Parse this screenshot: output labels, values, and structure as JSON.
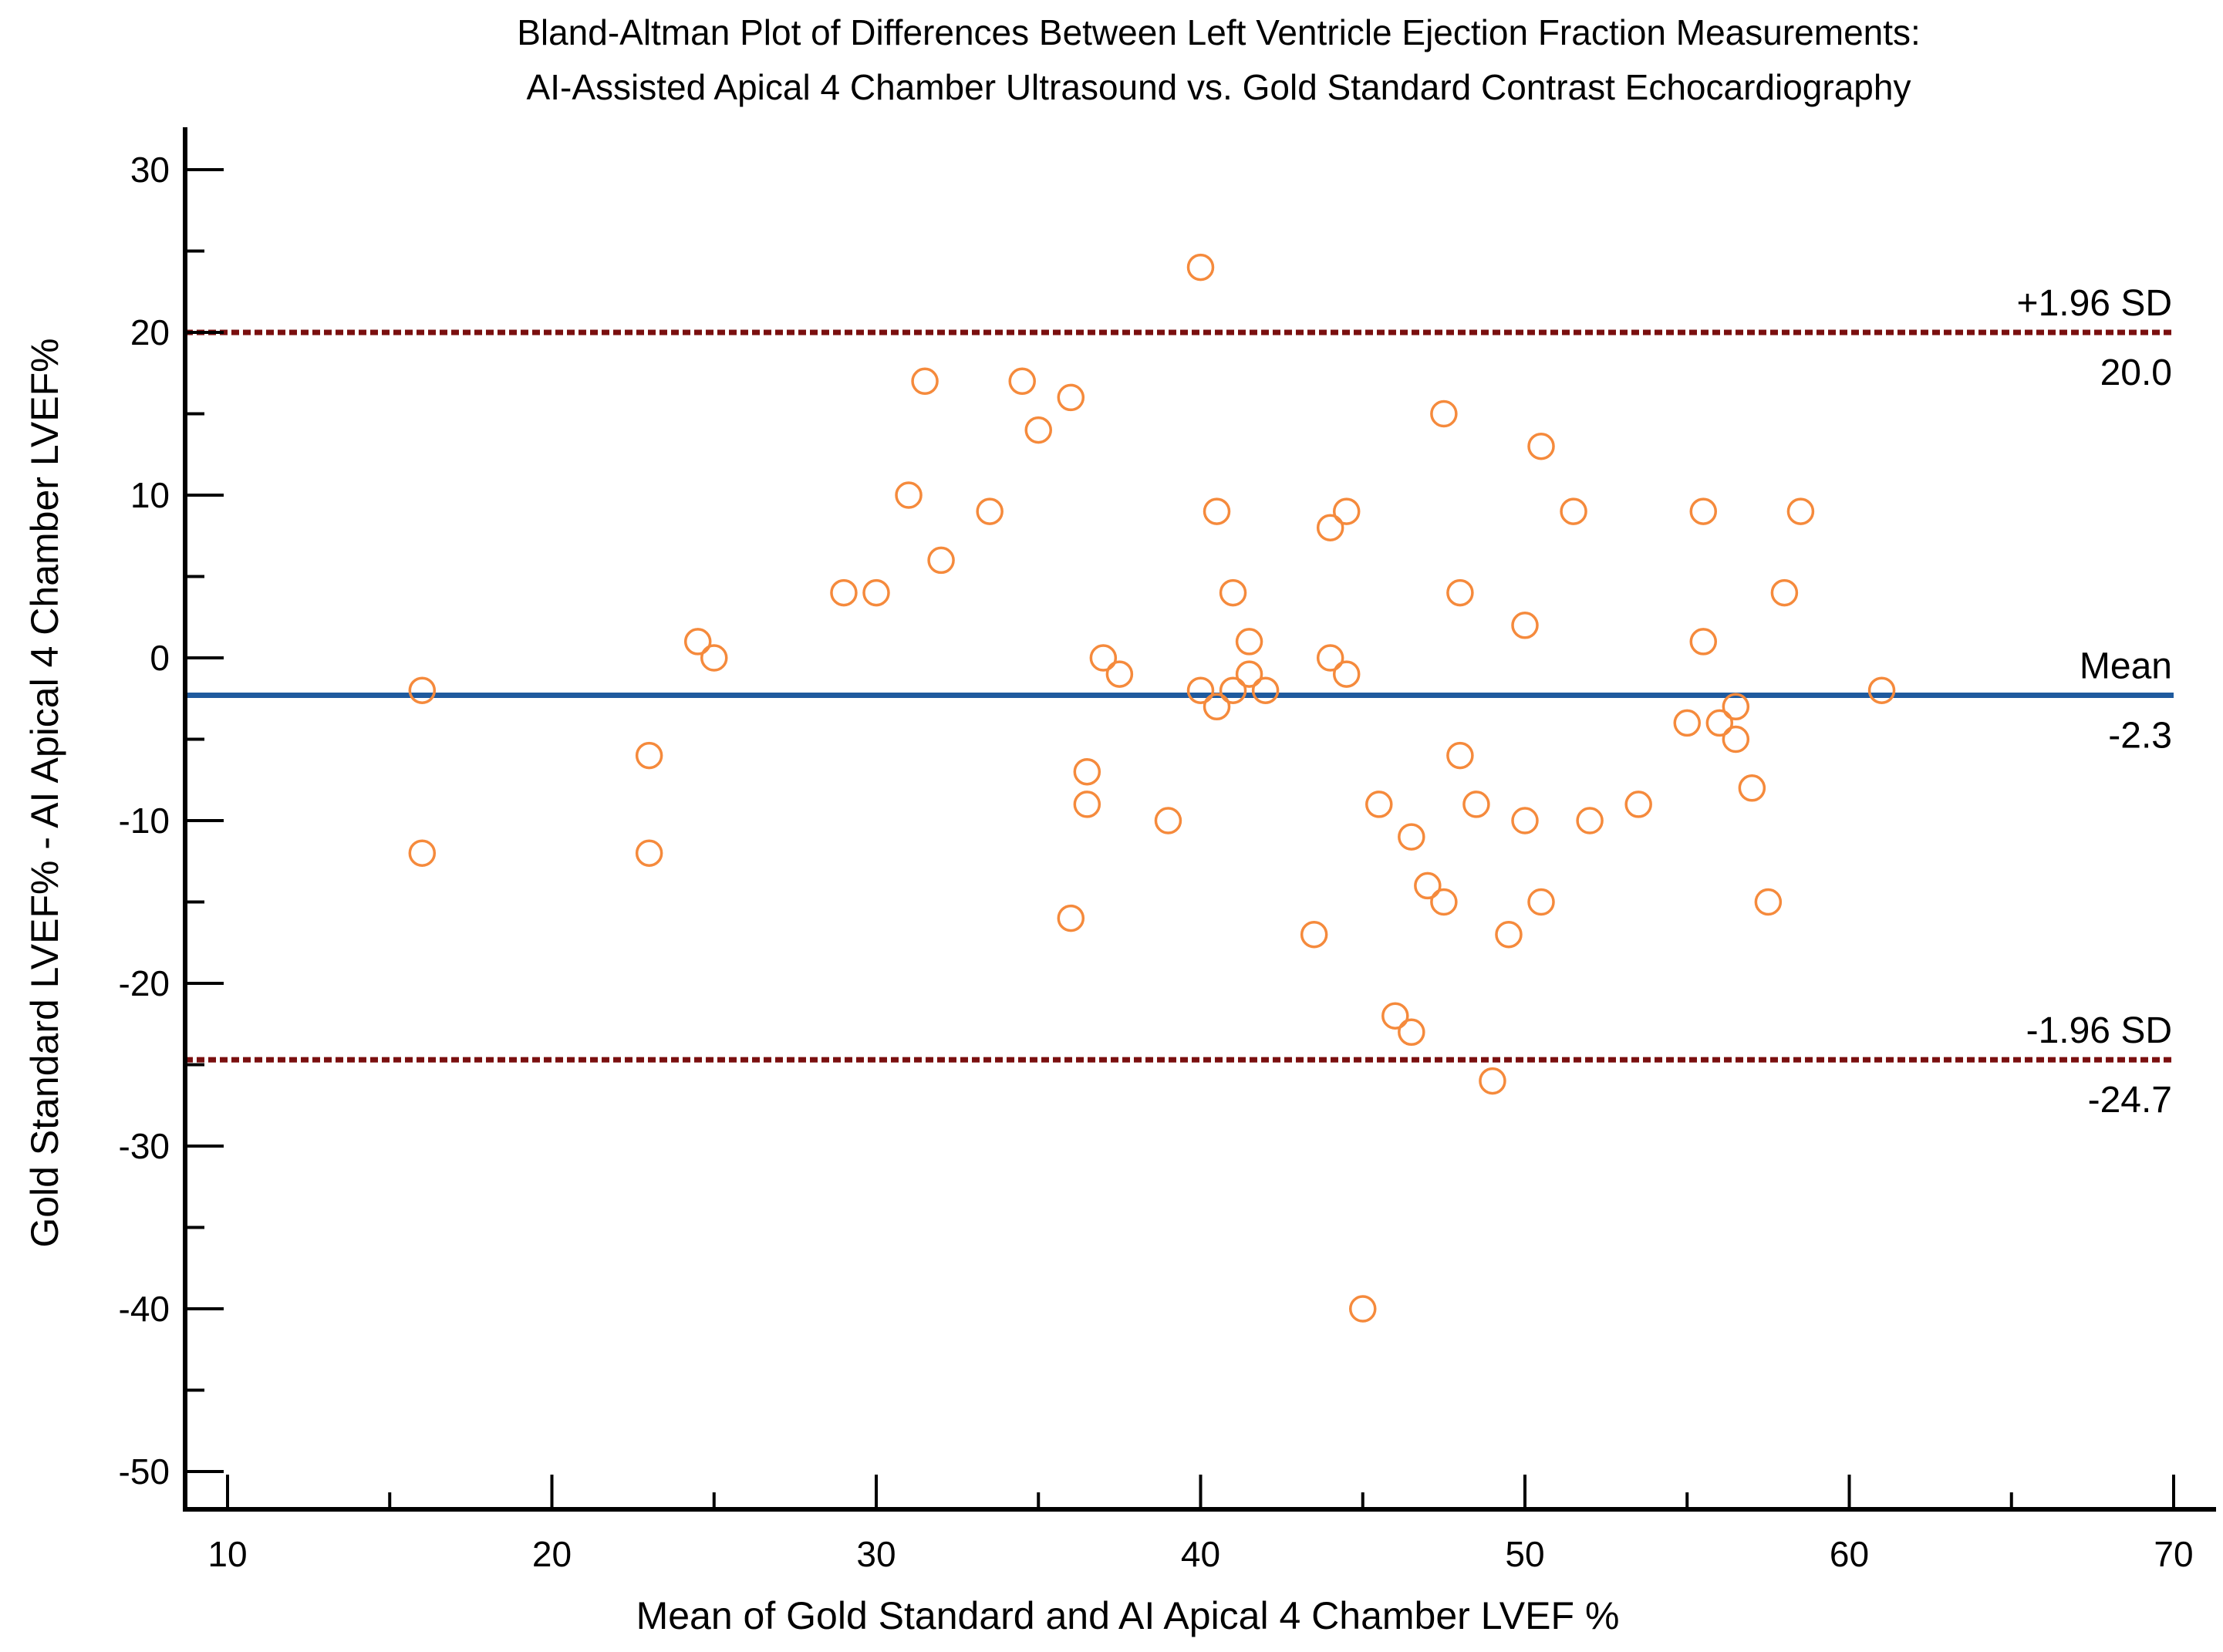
{
  "chart_data": {
    "type": "scatter",
    "title_lines": [
      "Bland-Altman Plot of Differences Between Left Ventricle Ejection Fraction Measurements:",
      "AI-Assisted Apical 4 Chamber Ultrasound vs. Gold Standard Contrast Echocardiography"
    ],
    "xlabel": "Mean of Gold Standard and AI Apical 4 Chamber LVEF %",
    "ylabel": "Gold Standard LVEF% - AI Apical 4 Chamber LVEF%",
    "xlim": [
      10,
      70
    ],
    "ylim": [
      -50,
      30
    ],
    "x_ticks": [
      10,
      20,
      30,
      40,
      50,
      60,
      70
    ],
    "x_tick_labels": [
      "10",
      "20",
      "30",
      "40",
      "50",
      "60",
      "70"
    ],
    "y_ticks": [
      30,
      20,
      10,
      0,
      -10,
      -20,
      -30,
      -40,
      -50
    ],
    "y_tick_labels": [
      "30",
      "20",
      "10",
      "0",
      "-10",
      "-20",
      "-30",
      "-40",
      "-50"
    ],
    "reference_lines": [
      {
        "name": "upper-loa",
        "label": "+1.96 SD",
        "value_label": "20.0",
        "y": 20.0,
        "color": "#7a0f0f",
        "style": "dashed"
      },
      {
        "name": "mean",
        "label": "Mean",
        "value_label": "-2.3",
        "y": -2.3,
        "color": "#1f5a9e",
        "style": "solid"
      },
      {
        "name": "lower-loa",
        "label": "-1.96 SD",
        "value_label": "-24.7",
        "y": -24.7,
        "color": "#7a0f0f",
        "style": "dashed"
      }
    ],
    "marker_color": "#f58a3c",
    "points": [
      {
        "x": 16,
        "y": -2
      },
      {
        "x": 16,
        "y": -12
      },
      {
        "x": 23,
        "y": -6
      },
      {
        "x": 23,
        "y": -12
      },
      {
        "x": 24.5,
        "y": 1
      },
      {
        "x": 25,
        "y": 0
      },
      {
        "x": 29,
        "y": 4
      },
      {
        "x": 30,
        "y": 4
      },
      {
        "x": 31,
        "y": 10
      },
      {
        "x": 31.5,
        "y": 17
      },
      {
        "x": 32,
        "y": 6
      },
      {
        "x": 33.5,
        "y": 9
      },
      {
        "x": 34.5,
        "y": 17
      },
      {
        "x": 35,
        "y": 14
      },
      {
        "x": 36,
        "y": 16
      },
      {
        "x": 36,
        "y": -16
      },
      {
        "x": 36.5,
        "y": -7
      },
      {
        "x": 36.5,
        "y": -9
      },
      {
        "x": 37,
        "y": 0
      },
      {
        "x": 37.5,
        "y": -1
      },
      {
        "x": 39,
        "y": -10
      },
      {
        "x": 40,
        "y": 24
      },
      {
        "x": 40,
        "y": -2
      },
      {
        "x": 40.5,
        "y": 9
      },
      {
        "x": 40.5,
        "y": -3
      },
      {
        "x": 41,
        "y": 4
      },
      {
        "x": 41,
        "y": -2
      },
      {
        "x": 41.5,
        "y": 1
      },
      {
        "x": 41.5,
        "y": -1
      },
      {
        "x": 42,
        "y": -2
      },
      {
        "x": 43.5,
        "y": -17
      },
      {
        "x": 44,
        "y": 8
      },
      {
        "x": 44,
        "y": 0
      },
      {
        "x": 44.5,
        "y": 9
      },
      {
        "x": 44.5,
        "y": -1
      },
      {
        "x": 45,
        "y": -40
      },
      {
        "x": 45.5,
        "y": -9
      },
      {
        "x": 46,
        "y": -22
      },
      {
        "x": 46.5,
        "y": -23
      },
      {
        "x": 46.5,
        "y": -11
      },
      {
        "x": 47,
        "y": -14
      },
      {
        "x": 47.5,
        "y": 15
      },
      {
        "x": 47.5,
        "y": -15
      },
      {
        "x": 48,
        "y": 4
      },
      {
        "x": 48,
        "y": -6
      },
      {
        "x": 48.5,
        "y": -9
      },
      {
        "x": 49,
        "y": -26
      },
      {
        "x": 49.5,
        "y": -17
      },
      {
        "x": 50,
        "y": 2
      },
      {
        "x": 50,
        "y": -10
      },
      {
        "x": 50.5,
        "y": 13
      },
      {
        "x": 50.5,
        "y": -15
      },
      {
        "x": 51.5,
        "y": 9
      },
      {
        "x": 52,
        "y": -10
      },
      {
        "x": 53.5,
        "y": -9
      },
      {
        "x": 55,
        "y": -4
      },
      {
        "x": 55.5,
        "y": 9
      },
      {
        "x": 55.5,
        "y": 1
      },
      {
        "x": 56,
        "y": -4
      },
      {
        "x": 56.5,
        "y": -3
      },
      {
        "x": 56.5,
        "y": -5
      },
      {
        "x": 57,
        "y": -8
      },
      {
        "x": 57.5,
        "y": -15
      },
      {
        "x": 58,
        "y": 4
      },
      {
        "x": 58.5,
        "y": 9
      },
      {
        "x": 61,
        "y": -2
      }
    ]
  }
}
